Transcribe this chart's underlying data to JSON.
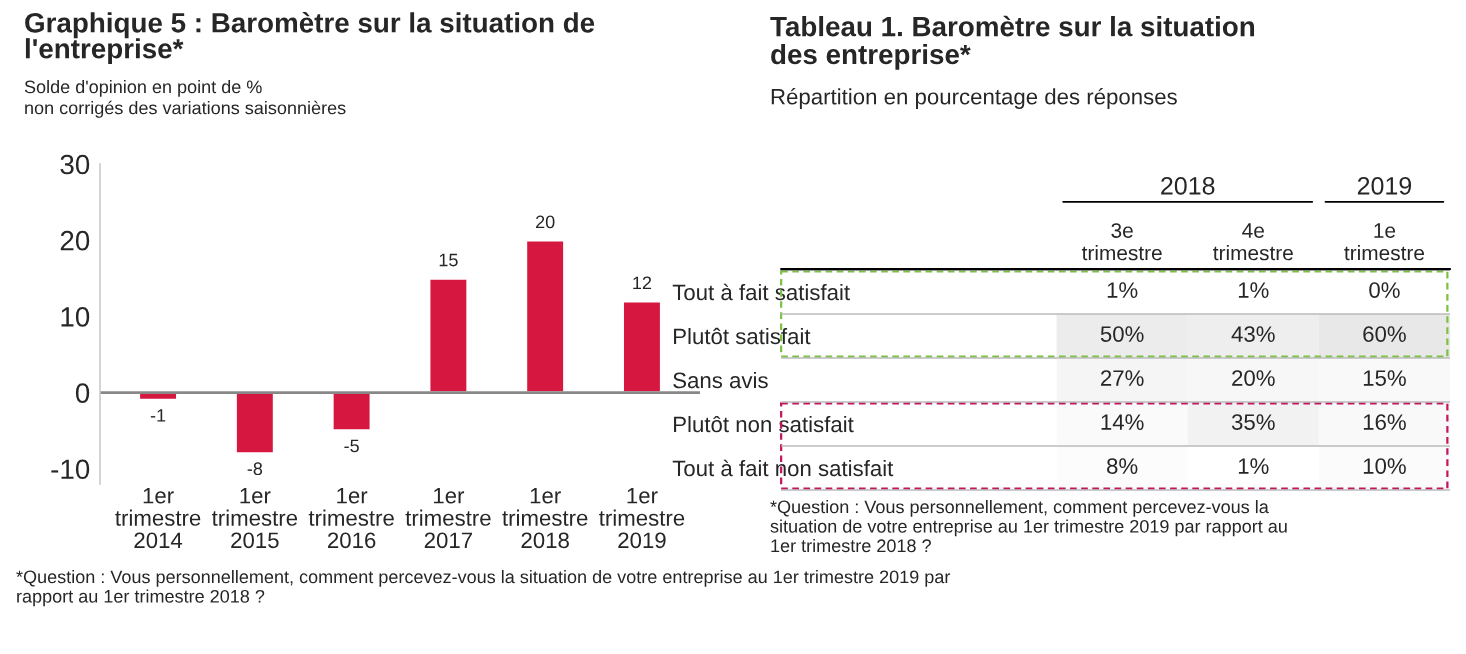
{
  "chart_data": [
    {
      "type": "bar",
      "title": "Graphique 5 : Baromètre sur la situation de l'entreprise*",
      "subtitle": "Solde d'opinion en point de %\nnon corrigés des variations saisonnières",
      "categories": [
        "1er\ntrimestre\n2014",
        "1er\ntrimestre\n2015",
        "1er\ntrimestre\n2016",
        "1er\ntrimestre\n2017",
        "1er\ntrimestre\n2018",
        "1er\ntrimestre\n2019"
      ],
      "values": [
        -1,
        -8,
        -5,
        15,
        20,
        12
      ],
      "color": "#d6173f",
      "ylim": [
        -12,
        30
      ],
      "yticks": [
        -10,
        0,
        10,
        20,
        30
      ],
      "grid": false,
      "ref_lines": [
        {
          "axis": "y",
          "value": 0,
          "color": "#888888"
        }
      ],
      "data_labels": true,
      "legend": false,
      "annotations": [
        "*Question : Vous personnellement, comment percevez-vous la situation de votre entreprise au 1er trimestre 2019 par rapport au 1er trimestre 2018 ?"
      ]
    },
    {
      "type": "heatmap",
      "title": "Tableau 1. Baromètre sur la situation\ndes entreprise*",
      "subtitle": "Répartition en pourcentage des réponses",
      "categories": [
        "3e\ntrimestre",
        "4e\ntrimestre",
        "1e\ntrimestre"
      ],
      "y_categories": [
        "Tout à fait satisfait",
        "Plutôt satisfait",
        "Sans avis",
        "Plutôt non satisfait",
        "Tout à fait non satisfait"
      ],
      "cells": [
        [
          1,
          1,
          0
        ],
        [
          50,
          43,
          60
        ],
        [
          27,
          20,
          15
        ],
        [
          14,
          35,
          16
        ],
        [
          8,
          1,
          10
        ]
      ],
      "cell_labels": [
        [
          "1%",
          "1%",
          "0%"
        ],
        [
          "50%",
          "43%",
          "60%"
        ],
        [
          "27%",
          "20%",
          "15%"
        ],
        [
          "14%",
          "35%",
          "16%"
        ],
        [
          "8%",
          "1%",
          "10%"
        ]
      ],
      "annotations": [
        "2018",
        "2019",
        "*Question : Vous personnellement, comment percevez-vous la\nsituation de votre entreprise au 1er trimestre 2019 par rapport au\n1er trimestre 2018 ?"
      ]
    }
  ]
}
